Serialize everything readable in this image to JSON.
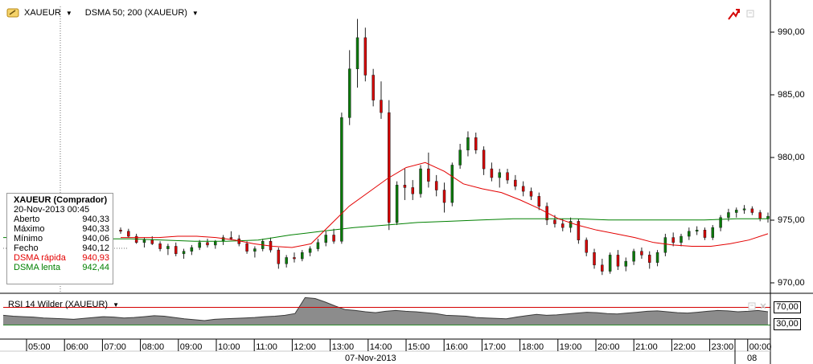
{
  "header": {
    "symbol": "XAUEUR",
    "indicator": "DSMA 50; 200 (XAUEUR)"
  },
  "colors": {
    "up": "#0a7a0a",
    "down": "#d40000",
    "dsma_fast": "#e30000",
    "dsma_slow": "#008000",
    "rsi_line": "#3b3b3b",
    "rsi_fill": "#8c8c8c",
    "rsi_upper": "#d40000",
    "rsi_lower": "#2e8b2e",
    "crosshair": "#6f6f6f"
  },
  "infobox": {
    "title": "XAUEUR (Comprador)",
    "date": "20-Nov-2013 00:45",
    "rows": [
      {
        "label": "Aberto",
        "value": "940,33"
      },
      {
        "label": "Máximo",
        "value": "940,33"
      },
      {
        "label": "Mínimo",
        "value": "940,06"
      },
      {
        "label": "Fecho",
        "value": "940,12"
      },
      {
        "label": "DSMA rápida",
        "value": "940,93"
      },
      {
        "label": "DSMA lenta",
        "value": "942,44"
      }
    ]
  },
  "rsi": {
    "label": "RSI 14 Wilder (XAUEUR)",
    "upper_tag": "70,00",
    "lower_tag": "30,00"
  },
  "xaxis": {
    "ticks": [
      "05:00",
      "06:00",
      "07:00",
      "08:00",
      "09:00",
      "10:00",
      "11:00",
      "12:00",
      "13:00",
      "14:00",
      "15:00",
      "16:00",
      "17:00",
      "18:00",
      "19:00",
      "20:00",
      "21:00",
      "22:00",
      "23:00",
      "00:00"
    ],
    "date_label": "07-Nov-2013",
    "next_day": "08"
  },
  "chart_data": {
    "type": "candlestick",
    "yticks": [
      "990,00",
      "985,00",
      "980,00",
      "975,00",
      "970,00"
    ],
    "ylim": [
      969.6,
      992.5
    ],
    "candles": [
      [
        974.6,
        974.8,
        974.3,
        974.5
      ],
      [
        974.5,
        974.7,
        974.0,
        974.1
      ],
      [
        974.1,
        974.3,
        973.5,
        973.6
      ],
      [
        973.6,
        974.0,
        973.2,
        973.8
      ],
      [
        973.8,
        974.1,
        973.4,
        973.5
      ],
      [
        973.5,
        973.7,
        972.9,
        973.1
      ],
      [
        973.1,
        973.5,
        972.6,
        973.3
      ],
      [
        973.3,
        973.6,
        972.5,
        972.7
      ],
      [
        972.7,
        973.1,
        972.3,
        972.9
      ],
      [
        972.9,
        973.4,
        972.6,
        973.2
      ],
      [
        973.2,
        973.8,
        973.0,
        973.6
      ],
      [
        973.6,
        973.9,
        973.2,
        973.4
      ],
      [
        973.4,
        973.8,
        973.1,
        973.7
      ],
      [
        973.7,
        974.2,
        973.4,
        974.0
      ],
      [
        974.0,
        974.5,
        973.8,
        973.9
      ],
      [
        973.9,
        974.2,
        973.3,
        973.5
      ],
      [
        973.5,
        973.7,
        972.7,
        972.9
      ],
      [
        972.9,
        973.3,
        972.4,
        973.1
      ],
      [
        973.1,
        973.9,
        972.9,
        973.7
      ],
      [
        973.7,
        974.0,
        972.8,
        973.0
      ],
      [
        973.0,
        973.2,
        971.5,
        971.9
      ],
      [
        971.9,
        972.6,
        971.6,
        972.4
      ],
      [
        972.4,
        972.8,
        972.0,
        972.3
      ],
      [
        972.3,
        973.0,
        972.1,
        972.8
      ],
      [
        972.8,
        973.3,
        972.5,
        973.1
      ],
      [
        973.1,
        973.9,
        972.9,
        973.6
      ],
      [
        973.6,
        974.5,
        973.3,
        974.2
      ],
      [
        974.2,
        974.7,
        973.5,
        973.7
      ],
      [
        973.7,
        984.0,
        973.5,
        983.6
      ],
      [
        983.6,
        989.0,
        983.0,
        987.5
      ],
      [
        987.5,
        991.5,
        986.0,
        990.0
      ],
      [
        990.0,
        990.8,
        986.5,
        987.0
      ],
      [
        987.0,
        987.5,
        984.5,
        985.0
      ],
      [
        985.0,
        986.5,
        983.5,
        984.0
      ],
      [
        984.0,
        985.0,
        974.6,
        975.2
      ],
      [
        975.2,
        978.5,
        975.0,
        978.2
      ],
      [
        978.2,
        979.5,
        977.0,
        978.0
      ],
      [
        978.0,
        978.6,
        977.0,
        977.5
      ],
      [
        977.5,
        979.8,
        977.2,
        979.5
      ],
      [
        979.5,
        980.8,
        978.0,
        978.5
      ],
      [
        978.5,
        979.0,
        977.3,
        977.8
      ],
      [
        977.8,
        978.4,
        976.0,
        976.8
      ],
      [
        976.8,
        980.0,
        976.5,
        979.8
      ],
      [
        979.8,
        981.5,
        979.5,
        981.0
      ],
      [
        981.0,
        982.5,
        980.5,
        982.0
      ],
      [
        982.0,
        982.4,
        980.7,
        981.0
      ],
      [
        981.0,
        981.3,
        979.0,
        979.5
      ],
      [
        979.5,
        980.0,
        978.5,
        978.8
      ],
      [
        978.8,
        979.5,
        978.0,
        979.2
      ],
      [
        979.2,
        979.5,
        978.3,
        978.6
      ],
      [
        978.6,
        979.0,
        977.8,
        978.1
      ],
      [
        978.1,
        978.5,
        977.3,
        977.7
      ],
      [
        977.7,
        978.0,
        977.0,
        977.3
      ],
      [
        977.3,
        977.6,
        976.2,
        976.5
      ],
      [
        976.5,
        976.8,
        975.0,
        975.4
      ],
      [
        975.4,
        975.8,
        974.8,
        975.1
      ],
      [
        975.1,
        975.5,
        974.5,
        974.8
      ],
      [
        974.8,
        975.6,
        974.4,
        975.3
      ],
      [
        975.3,
        975.5,
        973.5,
        973.8
      ],
      [
        973.8,
        974.0,
        972.5,
        972.8
      ],
      [
        972.8,
        973.1,
        971.5,
        971.8
      ],
      [
        971.8,
        972.3,
        971.0,
        971.3
      ],
      [
        971.3,
        972.8,
        971.1,
        972.6
      ],
      [
        972.6,
        973.0,
        971.4,
        971.7
      ],
      [
        971.7,
        972.4,
        971.3,
        972.1
      ],
      [
        972.1,
        973.1,
        971.8,
        972.9
      ],
      [
        972.9,
        973.2,
        972.3,
        972.6
      ],
      [
        972.6,
        972.9,
        971.5,
        972.0
      ],
      [
        972.0,
        973.0,
        971.7,
        972.8
      ],
      [
        972.8,
        974.3,
        972.5,
        974.0
      ],
      [
        974.0,
        974.4,
        973.3,
        973.6
      ],
      [
        973.6,
        974.3,
        973.3,
        974.1
      ],
      [
        974.1,
        974.8,
        973.8,
        974.5
      ],
      [
        974.5,
        974.9,
        974.2,
        974.6
      ],
      [
        974.6,
        974.8,
        973.8,
        974.0
      ],
      [
        974.0,
        975.0,
        973.8,
        974.8
      ],
      [
        974.8,
        975.8,
        974.5,
        975.6
      ],
      [
        975.6,
        976.3,
        975.3,
        976.0
      ],
      [
        976.0,
        976.4,
        975.6,
        976.2
      ],
      [
        976.2,
        976.6,
        975.9,
        976.3
      ],
      [
        976.3,
        976.5,
        975.8,
        976.0
      ],
      [
        976.0,
        976.2,
        975.3,
        975.5
      ],
      [
        975.5,
        976.0,
        975.2,
        975.7
      ]
    ],
    "dsma_fast": [
      974.0,
      974.0,
      974.0,
      974.1,
      974.1,
      974.0,
      973.8,
      973.5,
      973.3,
      973.2,
      973.5,
      975.0,
      976.5,
      977.6,
      978.7,
      979.6,
      980.0,
      979.3,
      978.3,
      977.9,
      977.6,
      977.0,
      976.3,
      975.5,
      975.0,
      974.6,
      974.3,
      974.0,
      973.6,
      973.4,
      973.3,
      973.3,
      973.5,
      973.8,
      974.3
    ],
    "dsma_slow": [
      974.0,
      974.0,
      974.0,
      973.9,
      973.9,
      973.8,
      973.7,
      973.7,
      973.8,
      974.2,
      974.5,
      974.8,
      975.0,
      975.2,
      975.3,
      975.4,
      975.5,
      975.5,
      975.5,
      975.4,
      975.4,
      975.4,
      975.4,
      975.5,
      975.5
    ],
    "rsi_ylim": [
      0,
      100
    ],
    "rsi_levels": [
      70,
      30
    ],
    "rsi": [
      52,
      50,
      49,
      48,
      46,
      45,
      44,
      43,
      45,
      47,
      49,
      48,
      46,
      47,
      49,
      51,
      50,
      47,
      44,
      42,
      40,
      43,
      44,
      45,
      46,
      47,
      49,
      50,
      52,
      56,
      92,
      90,
      82,
      73,
      65,
      63,
      60,
      58,
      61,
      63,
      61,
      60,
      58,
      56,
      52,
      51,
      50,
      47,
      46,
      45,
      44,
      48,
      51,
      54,
      52,
      53,
      55,
      57,
      59,
      58,
      56,
      55,
      57,
      59,
      61,
      62,
      60,
      58,
      57,
      59,
      61,
      63,
      62,
      60,
      61,
      63,
      60
    ]
  }
}
